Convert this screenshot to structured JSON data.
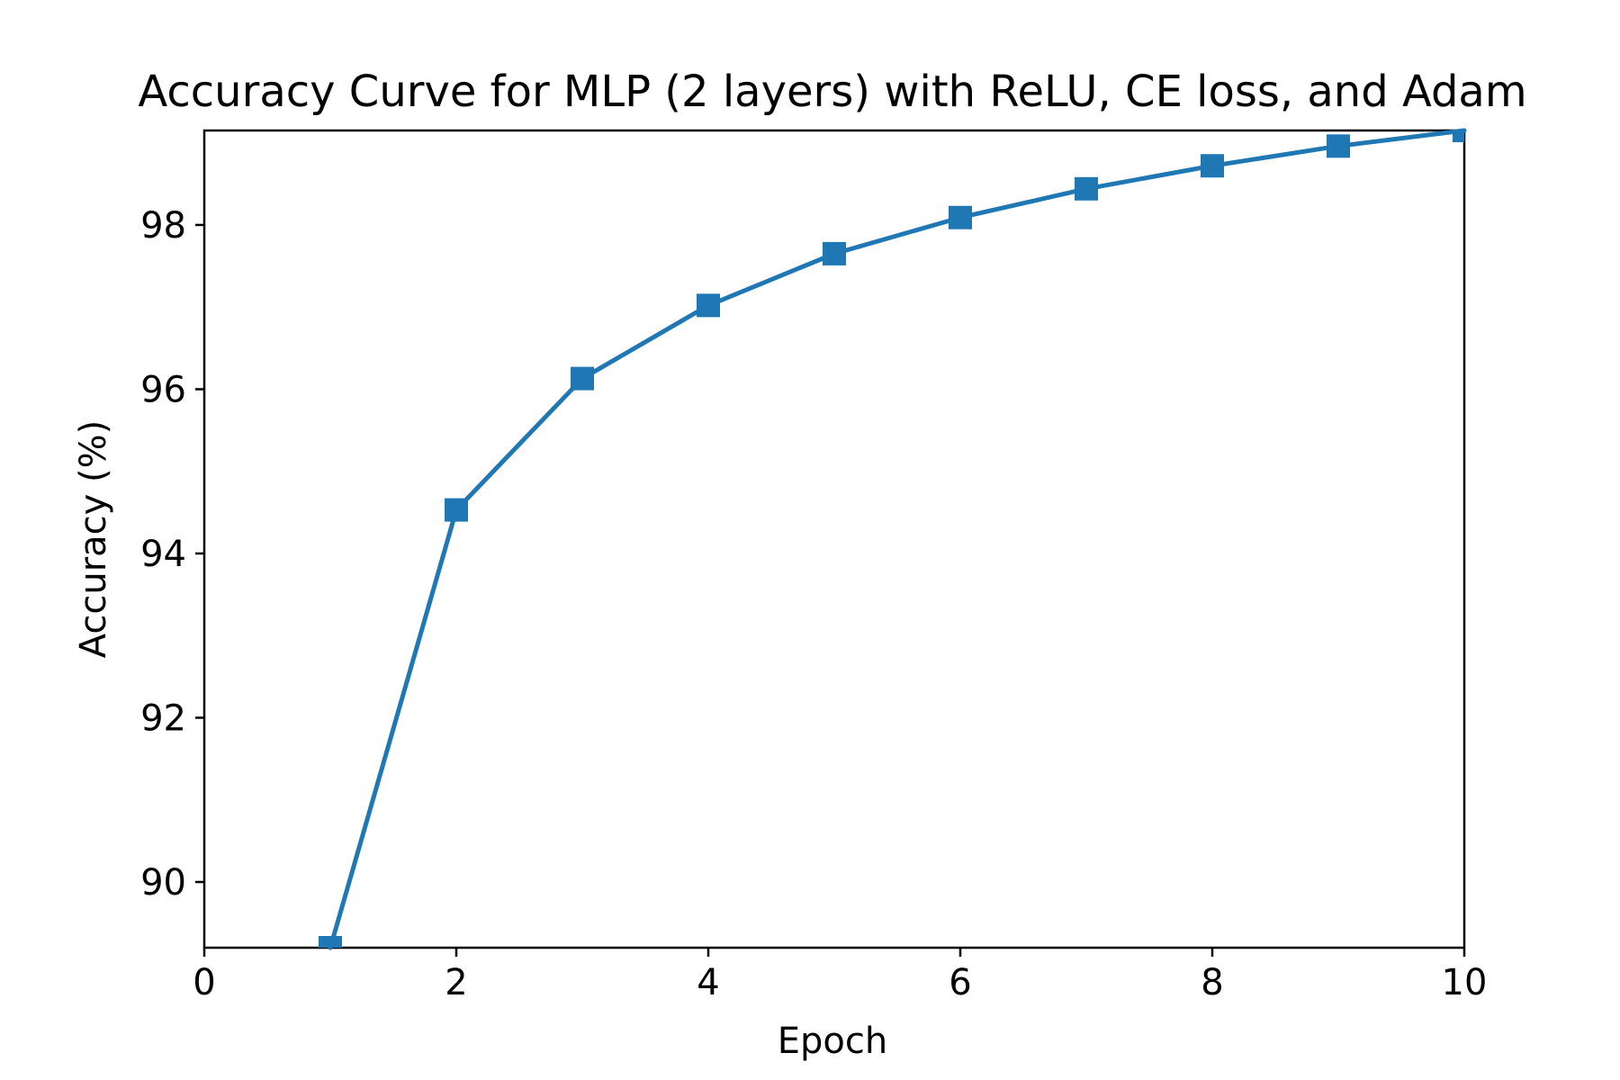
{
  "chart_data": {
    "type": "line",
    "title": "Accuracy Curve for MLP (2 layers) with ReLU, CE loss, and Adam",
    "xlabel": "Epoch",
    "ylabel": "Accuracy (%)",
    "xlim": [
      0,
      10
    ],
    "ylim": [
      89.2,
      99.15
    ],
    "xticks": [
      0,
      2,
      4,
      6,
      8,
      10
    ],
    "yticks": [
      90,
      92,
      94,
      96,
      98
    ],
    "grid": false,
    "series": [
      {
        "color": "#1f77b4",
        "marker": "square",
        "x": [
          1,
          2,
          3,
          4,
          5,
          6,
          7,
          8,
          9,
          10
        ],
        "y": [
          89.2,
          94.53,
          96.13,
          97.02,
          97.65,
          98.09,
          98.44,
          98.72,
          98.96,
          99.15
        ]
      }
    ]
  }
}
